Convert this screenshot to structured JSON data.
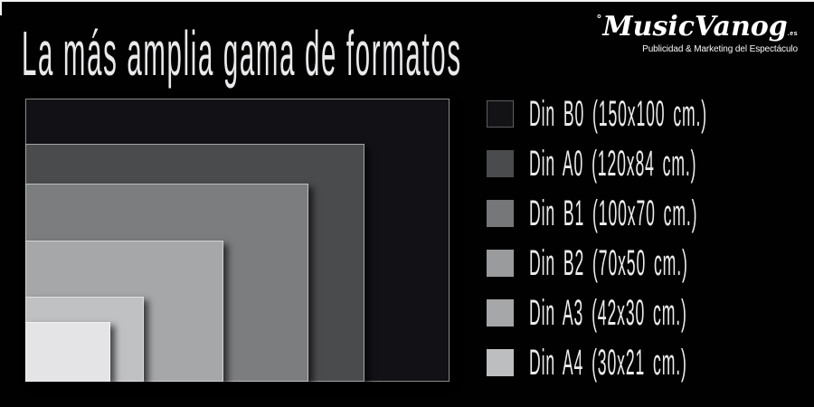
{
  "page": {
    "title": "La más amplia gama de formatos",
    "background_color": "#000000",
    "text_color": "#e9e9eb",
    "frame_line_color": "#f2f2f2"
  },
  "logo": {
    "prefix": "°",
    "name": "MusicVanog",
    "suffix": ".es",
    "tagline": "Publicidad & Marketing del Espectáculo"
  },
  "chart_data": {
    "type": "area",
    "title": "La más amplia gama de formatos",
    "unit": "cm",
    "layout": "nested rectangles anchored bottom-left, largest behind, legend at right",
    "formats": [
      {
        "code": "b0",
        "name": "Din B0",
        "width_cm": 150,
        "height_cm": 100,
        "legend_text": "Din B0 (150x100 cm.)",
        "rect_color": "#121216",
        "swatch_color": "#131316",
        "swatch_border": "#5d5d61"
      },
      {
        "code": "a0",
        "name": "Din A0",
        "width_cm": 120,
        "height_cm": 84,
        "legend_text": "Din A0 (120x84 cm.)",
        "rect_color": "#4a4b4d",
        "swatch_color": "#4a4b4d",
        "swatch_border": null
      },
      {
        "code": "b1",
        "name": "Din B1",
        "width_cm": 100,
        "height_cm": 70,
        "legend_text": "Din B1 (100x70 cm.)",
        "rect_color": "#7c7d7f",
        "swatch_color": "#767779",
        "swatch_border": null
      },
      {
        "code": "b2",
        "name": "Din B2",
        "width_cm": 70,
        "height_cm": 50,
        "legend_text": "Din B2 (70x50 cm.)",
        "rect_color": "#a6a7a9",
        "swatch_color": "#9a9b9d",
        "swatch_border": null
      },
      {
        "code": "a3",
        "name": "Din A3",
        "width_cm": 42,
        "height_cm": 30,
        "legend_text": "Din A3 (42x30 cm.)",
        "rect_color": "#c0c1c3",
        "swatch_color": "#a6a7a9",
        "swatch_border": null
      },
      {
        "code": "a4",
        "name": "Din A4",
        "width_cm": 30,
        "height_cm": 21,
        "legend_text": "Din A4 (30x21 cm.)",
        "rect_color": "#e4e4e6",
        "swatch_color": "#bdbec0",
        "swatch_border": null
      }
    ]
  }
}
